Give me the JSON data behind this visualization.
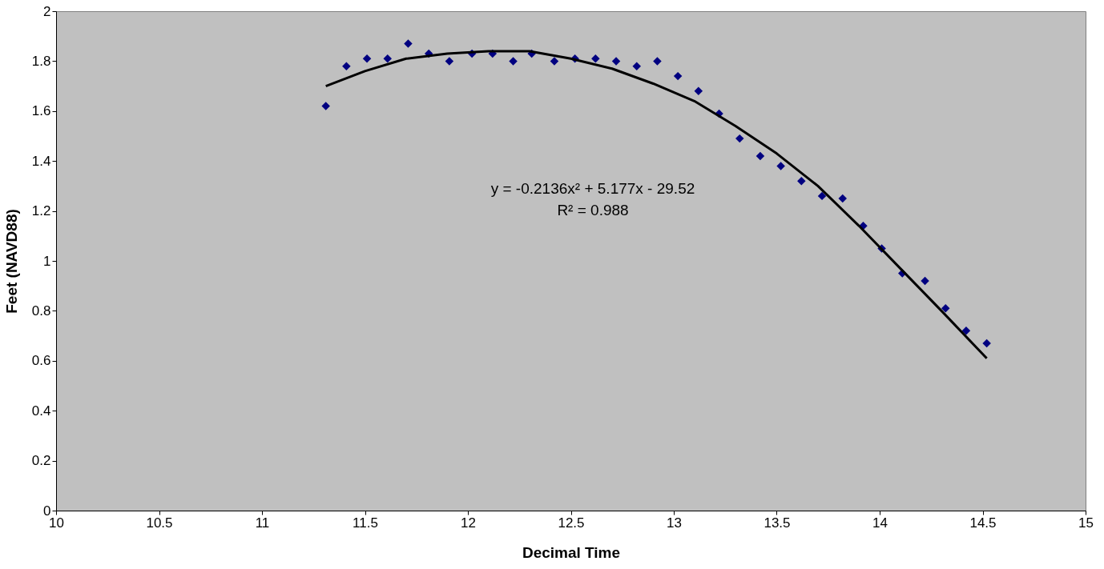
{
  "chart_data": {
    "type": "scatter",
    "xlabel": "Decimal Time",
    "ylabel": "Feet (NAVD88)",
    "xlim": [
      10,
      15
    ],
    "xticks": [
      10,
      10.5,
      11,
      11.5,
      12,
      12.5,
      13,
      13.5,
      14,
      14.5,
      15
    ],
    "ylim": [
      0,
      2
    ],
    "yticks": [
      0,
      0.2,
      0.4,
      0.6,
      0.8,
      1,
      1.2,
      1.4,
      1.6,
      1.8,
      2
    ],
    "grid": false,
    "legend": false,
    "marker": "diamond",
    "annotations": [
      "y = -0.2136x² + 5.177x - 29.52",
      "R² = 0.988"
    ],
    "series": [
      {
        "color": "#000080",
        "x": [
          11.31,
          11.41,
          11.51,
          11.61,
          11.71,
          11.81,
          11.91,
          12.02,
          12.12,
          12.22,
          12.31,
          12.42,
          12.52,
          12.62,
          12.72,
          12.82,
          12.92,
          13.02,
          13.12,
          13.22,
          13.32,
          13.42,
          13.52,
          13.62,
          13.72,
          13.82,
          13.92,
          14.01,
          14.11,
          14.22,
          14.32,
          14.42,
          14.52
        ],
        "values": [
          1.62,
          1.78,
          1.81,
          1.81,
          1.87,
          1.83,
          1.8,
          1.83,
          1.83,
          1.8,
          1.83,
          1.8,
          1.81,
          1.81,
          1.8,
          1.78,
          1.8,
          1.74,
          1.68,
          1.59,
          1.49,
          1.42,
          1.38,
          1.32,
          1.26,
          1.25,
          1.14,
          1.05,
          0.95,
          0.92,
          0.81,
          0.72,
          0.67
        ]
      },
      {
        "type": "line",
        "marker": "none",
        "color": "#000000",
        "line_style": "solid",
        "x": [
          11.31,
          11.5,
          11.7,
          11.9,
          12.1,
          12.3,
          12.5,
          12.7,
          12.9,
          13.1,
          13.3,
          13.5,
          13.7,
          13.9,
          14.1,
          14.3,
          14.52
        ],
        "values": [
          1.7,
          1.76,
          1.81,
          1.83,
          1.84,
          1.84,
          1.81,
          1.77,
          1.71,
          1.64,
          1.54,
          1.43,
          1.3,
          1.14,
          0.97,
          0.8,
          0.61
        ]
      }
    ]
  }
}
